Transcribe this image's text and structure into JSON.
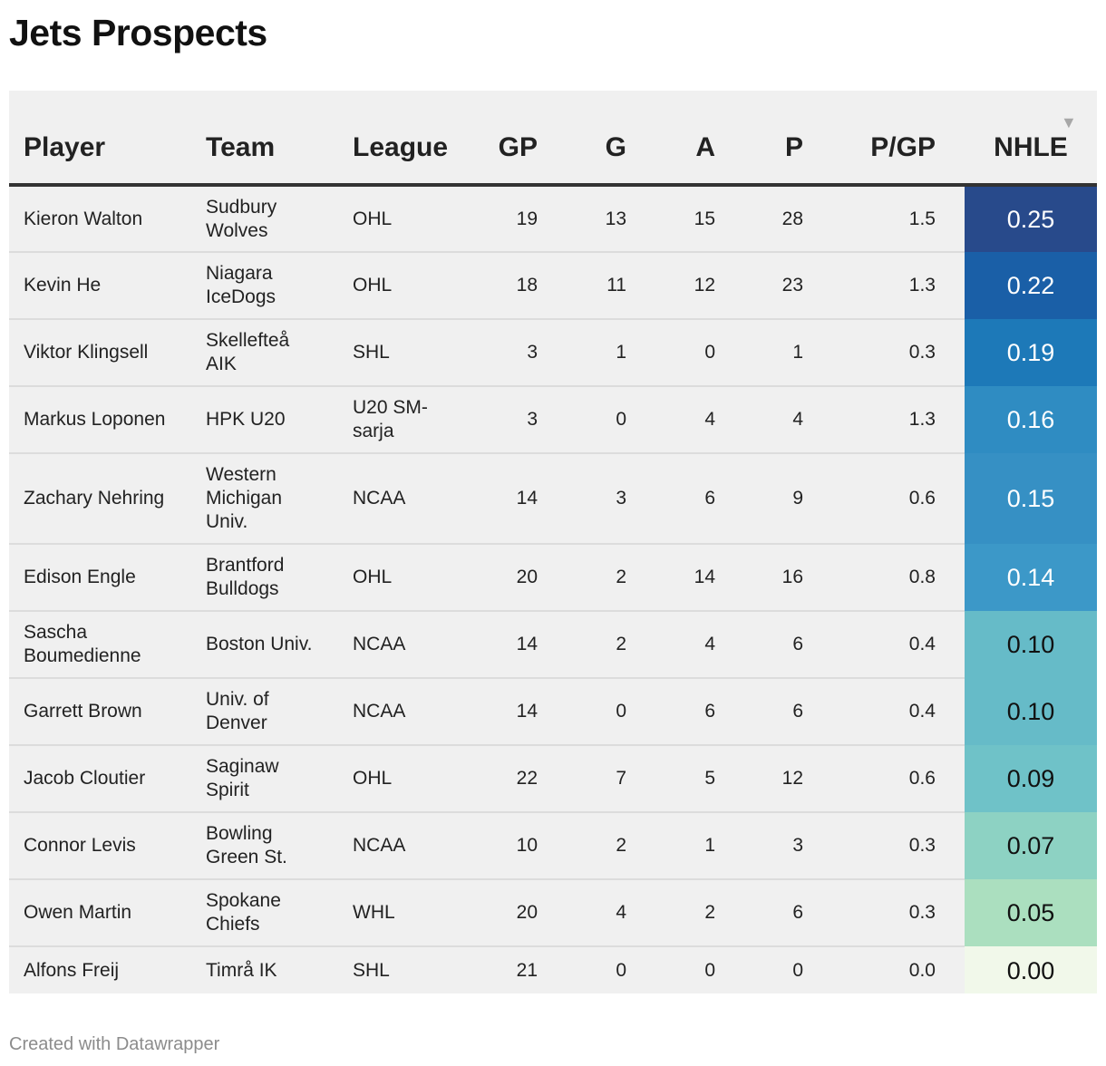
{
  "title": "Jets Prospects",
  "footer": "Created with Datawrapper",
  "chart_data": {
    "type": "table",
    "columns": [
      "Player",
      "Team",
      "League",
      "GP",
      "G",
      "A",
      "P",
      "P/GP",
      "NHLE"
    ],
    "sorted_by": "NHLE",
    "sort_order": "descending",
    "rows": [
      {
        "player": "Kieron Walton",
        "team": "Sudbury Wolves",
        "league": "OHL",
        "gp": "19",
        "g": "13",
        "a": "15",
        "p": "28",
        "pgp": "1.5",
        "nhle": "0.25",
        "nhle_bg": "#284a8b",
        "nhle_fg": "#ffffff"
      },
      {
        "player": "Kevin He",
        "team": "Niagara IceDogs",
        "league": "OHL",
        "gp": "18",
        "g": "11",
        "a": "12",
        "p": "23",
        "pgp": "1.3",
        "nhle": "0.22",
        "nhle_bg": "#1a5fa7",
        "nhle_fg": "#ffffff"
      },
      {
        "player": "Viktor Klingsell",
        "team": "Skellefteå AIK",
        "league": "SHL",
        "gp": "3",
        "g": "1",
        "a": "0",
        "p": "1",
        "pgp": "0.3",
        "nhle": "0.19",
        "nhle_bg": "#1d79b8",
        "nhle_fg": "#ffffff"
      },
      {
        "player": "Markus Loponen",
        "team": "HPK U20",
        "league": "U20 SM-sarja",
        "gp": "3",
        "g": "0",
        "a": "4",
        "p": "4",
        "pgp": "1.3",
        "nhle": "0.16",
        "nhle_bg": "#2f8cc2",
        "nhle_fg": "#ffffff"
      },
      {
        "player": "Zachary Nehring",
        "team": "Western Michigan Univ.",
        "league": "NCAA",
        "gp": "14",
        "g": "3",
        "a": "6",
        "p": "9",
        "pgp": "0.6",
        "nhle": "0.15",
        "nhle_bg": "#3690c4",
        "nhle_fg": "#ffffff"
      },
      {
        "player": "Edison Engle",
        "team": "Brantford Bulldogs",
        "league": "OHL",
        "gp": "20",
        "g": "2",
        "a": "14",
        "p": "16",
        "pgp": "0.8",
        "nhle": "0.14",
        "nhle_bg": "#3c98c8",
        "nhle_fg": "#ffffff"
      },
      {
        "player": "Sascha Boumedienne",
        "team": "Boston Univ.",
        "league": "NCAA",
        "gp": "14",
        "g": "2",
        "a": "4",
        "p": "6",
        "pgp": "0.4",
        "nhle": "0.10",
        "nhle_bg": "#66bbc8",
        "nhle_fg": "#111111"
      },
      {
        "player": "Garrett Brown",
        "team": "Univ. of Denver",
        "league": "NCAA",
        "gp": "14",
        "g": "0",
        "a": "6",
        "p": "6",
        "pgp": "0.4",
        "nhle": "0.10",
        "nhle_bg": "#66bbc8",
        "nhle_fg": "#111111"
      },
      {
        "player": "Jacob Cloutier",
        "team": "Saginaw Spirit",
        "league": "OHL",
        "gp": "22",
        "g": "7",
        "a": "5",
        "p": "12",
        "pgp": "0.6",
        "nhle": "0.09",
        "nhle_bg": "#6fc2c8",
        "nhle_fg": "#111111"
      },
      {
        "player": "Connor Levis",
        "team": "Bowling Green St.",
        "league": "NCAA",
        "gp": "10",
        "g": "2",
        "a": "1",
        "p": "3",
        "pgp": "0.3",
        "nhle": "0.07",
        "nhle_bg": "#8dd2c3",
        "nhle_fg": "#111111"
      },
      {
        "player": "Owen Martin",
        "team": "Spokane Chiefs",
        "league": "WHL",
        "gp": "20",
        "g": "4",
        "a": "2",
        "p": "6",
        "pgp": "0.3",
        "nhle": "0.05",
        "nhle_bg": "#abdfbf",
        "nhle_fg": "#111111"
      },
      {
        "player": "Alfons Freij",
        "team": "Timrå IK",
        "league": "SHL",
        "gp": "21",
        "g": "0",
        "a": "0",
        "p": "0",
        "pgp": "0.0",
        "nhle": "0.00",
        "nhle_bg": "#f1f8ea",
        "nhle_fg": "#111111"
      }
    ]
  }
}
